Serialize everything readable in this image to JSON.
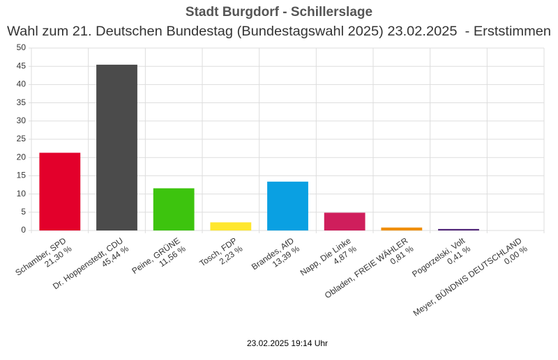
{
  "chart_data": {
    "type": "bar",
    "title": "Stadt Burgdorf - Schillerslage",
    "subtitle": "Wahl zum 21. Deutschen Bundestag (Bundestagswahl 2025) 23.02.2025  - Erststimmen",
    "categories": [
      "Schamber, SPD",
      "Dr. Hoppenstedt, CDU",
      "Peine, GRÜNE",
      "Tosch, FDP",
      "Brandes, AfD",
      "Napp, Die Linke",
      "Obladen, FREIE WÄHLER",
      "Pogorzelski, Volt",
      "Meyer, BÜNDNIS DEUTSCHLAND"
    ],
    "values": [
      21.3,
      45.44,
      11.56,
      2.23,
      13.39,
      4.87,
      0.81,
      0.41,
      0.0
    ],
    "value_labels": [
      "21,30 %",
      "45,44 %",
      "11,56 %",
      "2,23 %",
      "13,39 %",
      "4,87 %",
      "0,81 %",
      "0,41 %",
      "0,00 %"
    ],
    "colors": [
      "#e3002b",
      "#4b4b4b",
      "#3dc40e",
      "#ffe72e",
      "#0aa0e2",
      "#cf1e5c",
      "#ef8e0a",
      "#4f2377",
      "#7a1b4e"
    ],
    "ylim": [
      0,
      50
    ],
    "yticks": [
      0,
      5,
      10,
      15,
      20,
      25,
      30,
      35,
      40,
      45,
      50
    ],
    "grid": true,
    "footer": "23.02.2025 19:14 Uhr"
  }
}
